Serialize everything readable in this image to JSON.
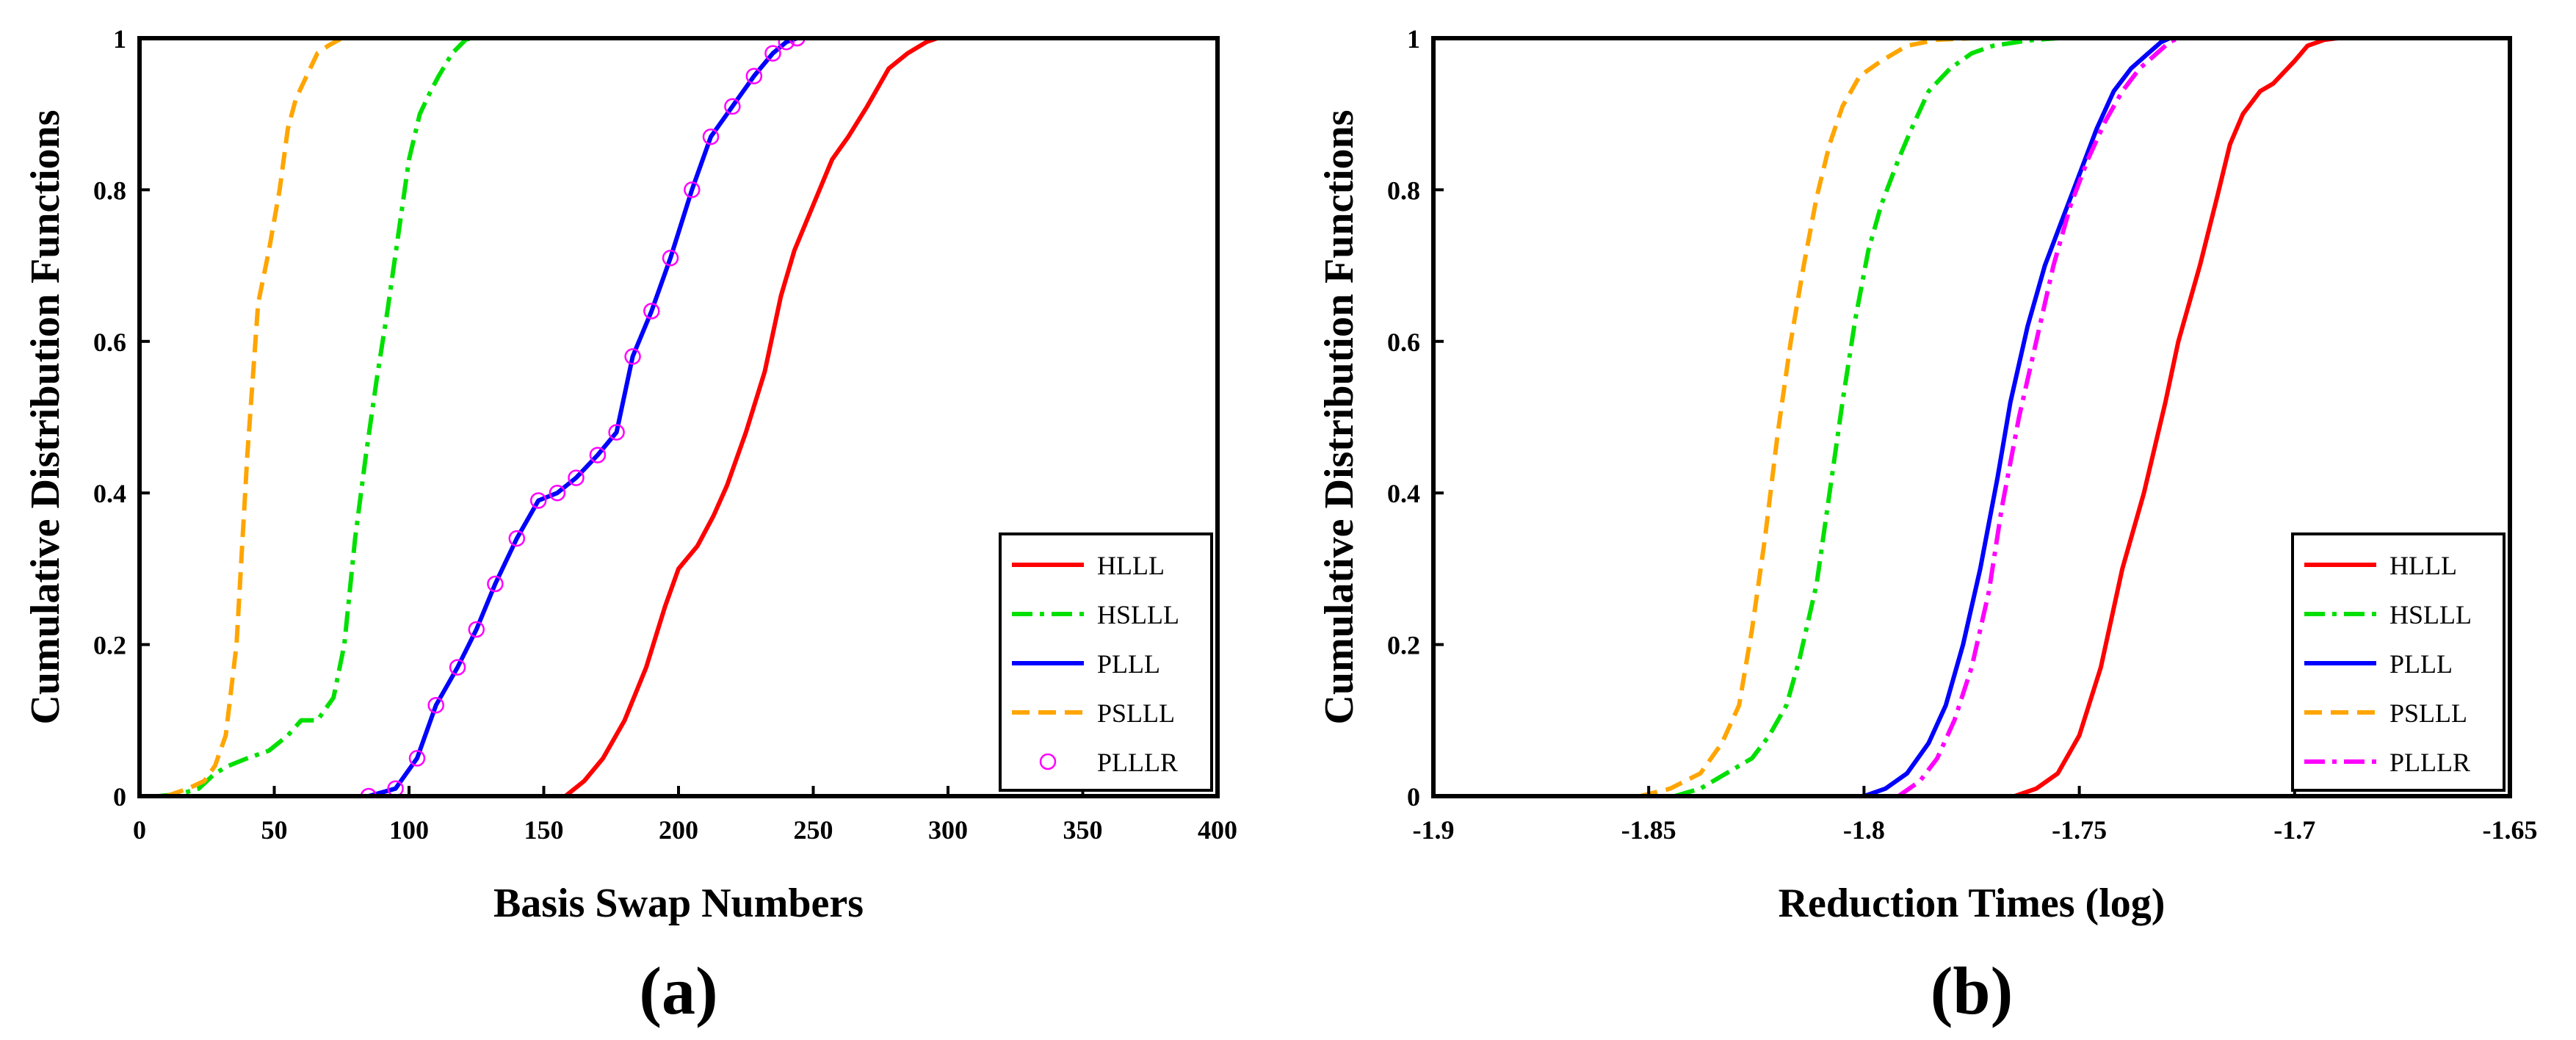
{
  "chart_data": [
    {
      "type": "line",
      "panel_label": "(a)",
      "xlabel": "Basis Swap Numbers",
      "ylabel": "Cumulative Distribution Functions",
      "xlim": [
        0,
        400
      ],
      "ylim": [
        0,
        1
      ],
      "xticks": [
        0,
        50,
        100,
        150,
        200,
        250,
        300,
        350,
        400
      ],
      "xtick_labels": [
        "0",
        "50",
        "100",
        "150",
        "200",
        "250",
        "300",
        "350",
        "400"
      ],
      "yticks": [
        0,
        0.2,
        0.4,
        0.6,
        0.8,
        1
      ],
      "ytick_labels": [
        "0",
        "0.2",
        "0.4",
        "0.6",
        "0.8",
        "1"
      ],
      "grid": false,
      "legend_position": "bottom-right",
      "series": [
        {
          "name": "HLLL",
          "color": "#ff0000",
          "style": "solid",
          "x": [
            158,
            165,
            172,
            180,
            188,
            195,
            200,
            207,
            213,
            218,
            225,
            232,
            238,
            243,
            250,
            257,
            263,
            270,
            278,
            285,
            292,
            296
          ],
          "y": [
            0,
            0.02,
            0.05,
            0.1,
            0.17,
            0.25,
            0.3,
            0.33,
            0.37,
            0.41,
            0.48,
            0.56,
            0.66,
            0.72,
            0.78,
            0.84,
            0.87,
            0.91,
            0.96,
            0.98,
            0.995,
            1
          ]
        },
        {
          "name": "HSLLL",
          "color": "#00e000",
          "style": "dashdot",
          "x": [
            7,
            15,
            22,
            28,
            33,
            40,
            48,
            55,
            60,
            66,
            72,
            76,
            80,
            84,
            88,
            92,
            96,
            100,
            104,
            108,
            111,
            116,
            121,
            123
          ],
          "y": [
            0,
            0.003,
            0.01,
            0.03,
            0.04,
            0.05,
            0.06,
            0.08,
            0.1,
            0.1,
            0.13,
            0.2,
            0.34,
            0.45,
            0.55,
            0.64,
            0.74,
            0.84,
            0.9,
            0.93,
            0.95,
            0.98,
            0.998,
            1
          ]
        },
        {
          "name": "PLLL",
          "color": "#0000ff",
          "style": "solid",
          "x": [
            85,
            95,
            103,
            110,
            118,
            125,
            132,
            140,
            148,
            155,
            162,
            170,
            177,
            183,
            190,
            197,
            205,
            212,
            220,
            228,
            235,
            240,
            244
          ],
          "y": [
            0,
            0.01,
            0.05,
            0.12,
            0.17,
            0.22,
            0.28,
            0.34,
            0.39,
            0.4,
            0.42,
            0.45,
            0.48,
            0.58,
            0.64,
            0.71,
            0.8,
            0.87,
            0.91,
            0.95,
            0.98,
            0.995,
            1
          ]
        },
        {
          "name": "PSLLL",
          "color": "#ffa500",
          "style": "dashed",
          "x": [
            10,
            18,
            24,
            28,
            32,
            36,
            40,
            44,
            48,
            52,
            55,
            58,
            62,
            66,
            70,
            74,
            77
          ],
          "y": [
            0,
            0.01,
            0.02,
            0.04,
            0.08,
            0.2,
            0.45,
            0.65,
            0.72,
            0.8,
            0.88,
            0.92,
            0.95,
            0.98,
            0.99,
            0.998,
            1
          ]
        },
        {
          "name": "PLLLR",
          "color": "#ff00ff",
          "style": "markers",
          "x": [
            85,
            95,
            103,
            110,
            118,
            125,
            132,
            140,
            148,
            155,
            162,
            170,
            177,
            183,
            190,
            197,
            205,
            212,
            220,
            228,
            235,
            240,
            244
          ],
          "y": [
            0,
            0.01,
            0.05,
            0.12,
            0.17,
            0.22,
            0.28,
            0.34,
            0.39,
            0.4,
            0.42,
            0.45,
            0.48,
            0.58,
            0.64,
            0.71,
            0.8,
            0.87,
            0.91,
            0.95,
            0.98,
            0.995,
            1
          ]
        }
      ]
    },
    {
      "type": "line",
      "panel_label": "(b)",
      "xlabel": "Reduction Times (log)",
      "ylabel": "Cumulative Distribution Functions",
      "xlim": [
        -1.9,
        -1.65
      ],
      "ylim": [
        0,
        1
      ],
      "xticks": [
        -1.9,
        -1.85,
        -1.8,
        -1.75,
        -1.7,
        -1.65
      ],
      "xtick_labels": [
        "-1.9",
        "-1.85",
        "-1.8",
        "-1.75",
        "-1.7",
        "-1.65"
      ],
      "yticks": [
        0,
        0.2,
        0.4,
        0.6,
        0.8,
        1
      ],
      "ytick_labels": [
        "0",
        "0.2",
        "0.4",
        "0.6",
        "0.8",
        "1"
      ],
      "grid": false,
      "legend_position": "bottom-right",
      "series": [
        {
          "name": "HLLL",
          "color": "#ff0000",
          "style": "solid",
          "x": [
            -1.765,
            -1.76,
            -1.755,
            -1.75,
            -1.745,
            -1.74,
            -1.735,
            -1.73,
            -1.727,
            -1.722,
            -1.718,
            -1.715,
            -1.712,
            -1.708,
            -1.705,
            -1.7,
            -1.697,
            -1.693,
            -1.69
          ],
          "y": [
            0,
            0.01,
            0.03,
            0.08,
            0.17,
            0.3,
            0.4,
            0.52,
            0.6,
            0.7,
            0.79,
            0.86,
            0.9,
            0.93,
            0.94,
            0.97,
            0.99,
            0.998,
            1
          ]
        },
        {
          "name": "HSLLL",
          "color": "#00e000",
          "style": "dashdot",
          "x": [
            -1.844,
            -1.838,
            -1.832,
            -1.826,
            -1.822,
            -1.818,
            -1.815,
            -1.811,
            -1.808,
            -1.805,
            -1.802,
            -1.799,
            -1.796,
            -1.792,
            -1.789,
            -1.785,
            -1.78,
            -1.775,
            -1.77,
            -1.762,
            -1.755
          ],
          "y": [
            0,
            0.01,
            0.03,
            0.05,
            0.08,
            0.12,
            0.18,
            0.28,
            0.4,
            0.52,
            0.63,
            0.72,
            0.78,
            0.84,
            0.88,
            0.93,
            0.96,
            0.98,
            0.99,
            0.997,
            1
          ]
        },
        {
          "name": "PLLL",
          "color": "#0000ff",
          "style": "solid",
          "x": [
            -1.8,
            -1.795,
            -1.79,
            -1.785,
            -1.781,
            -1.777,
            -1.773,
            -1.769,
            -1.766,
            -1.762,
            -1.758,
            -1.754,
            -1.75,
            -1.746,
            -1.742,
            -1.738,
            -1.734,
            -1.731,
            -1.729
          ],
          "y": [
            0,
            0.01,
            0.03,
            0.07,
            0.12,
            0.2,
            0.3,
            0.42,
            0.52,
            0.62,
            0.7,
            0.76,
            0.82,
            0.88,
            0.93,
            0.96,
            0.98,
            0.995,
            1
          ]
        },
        {
          "name": "PSLLL",
          "color": "#ffa500",
          "style": "dashed",
          "x": [
            -1.852,
            -1.845,
            -1.838,
            -1.833,
            -1.829,
            -1.826,
            -1.823,
            -1.82,
            -1.817,
            -1.814,
            -1.811,
            -1.808,
            -1.805,
            -1.801,
            -1.796,
            -1.79,
            -1.783,
            -1.775
          ],
          "y": [
            0,
            0.01,
            0.03,
            0.07,
            0.12,
            0.22,
            0.34,
            0.48,
            0.6,
            0.7,
            0.79,
            0.86,
            0.91,
            0.95,
            0.97,
            0.99,
            0.998,
            1
          ]
        },
        {
          "name": "PLLLR",
          "color": "#ff00ff",
          "style": "dashdot",
          "x": [
            -1.792,
            -1.787,
            -1.783,
            -1.779,
            -1.775,
            -1.771,
            -1.768,
            -1.764,
            -1.76,
            -1.756,
            -1.752,
            -1.748,
            -1.744,
            -1.74,
            -1.736,
            -1.732,
            -1.729,
            -1.727
          ],
          "y": [
            0,
            0.02,
            0.05,
            0.1,
            0.17,
            0.27,
            0.38,
            0.5,
            0.6,
            0.7,
            0.78,
            0.84,
            0.89,
            0.93,
            0.96,
            0.98,
            0.995,
            1
          ]
        }
      ]
    }
  ]
}
